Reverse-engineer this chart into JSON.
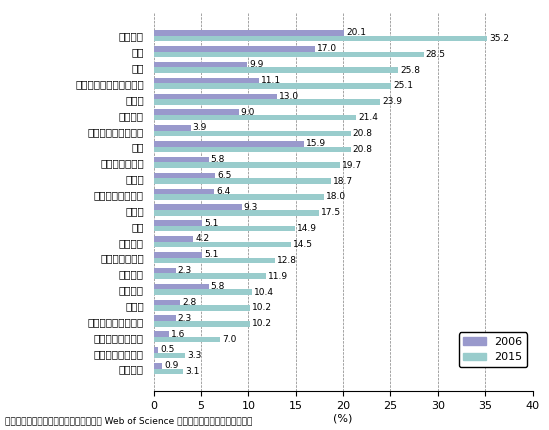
{
  "categories": [
    "材料科学",
    "化学",
    "工学",
    "コンピュータサイエンス",
    "物理学",
    "地球科学",
    "分子生物学・遺伝学",
    "数学",
    "生物学・生化学",
    "薬理学",
    "環境科学・生態学",
    "多領域",
    "農学",
    "微生物学",
    "植物学・動物学",
    "臨床医学",
    "宇宙科学",
    "免疫学",
    "神経科学・行動科学",
    "経済学・ビジネス",
    "精神医学・心理学",
    "社会科学"
  ],
  "values_2006": [
    20.1,
    17.0,
    9.9,
    11.1,
    13.0,
    9.0,
    3.9,
    15.9,
    5.8,
    6.5,
    6.4,
    9.3,
    5.1,
    4.2,
    5.1,
    2.3,
    5.8,
    2.8,
    2.3,
    1.6,
    0.5,
    0.9
  ],
  "values_2015": [
    35.2,
    28.5,
    25.8,
    25.1,
    23.9,
    21.4,
    20.8,
    20.8,
    19.7,
    18.7,
    18.0,
    17.5,
    14.9,
    14.5,
    12.8,
    11.9,
    10.4,
    10.2,
    10.2,
    7.0,
    3.3,
    3.1
  ],
  "color_2006": "#9999cc",
  "color_2015": "#99cccc",
  "xlabel": "(%)",
  "xlim": [
    0,
    40
  ],
  "xticks": [
    0,
    5,
    10,
    15,
    20,
    25,
    30,
    35,
    40
  ],
  "legend_2006": "2006",
  "legend_2015": "2015",
  "footnote": "資料：クラリベイト・アナリティクス社 Web of Science のデータから経済産業省作成。",
  "bar_height": 0.35,
  "title_fontsize": 9,
  "label_fontsize": 7.5,
  "tick_fontsize": 8,
  "value_fontsize": 6.5
}
